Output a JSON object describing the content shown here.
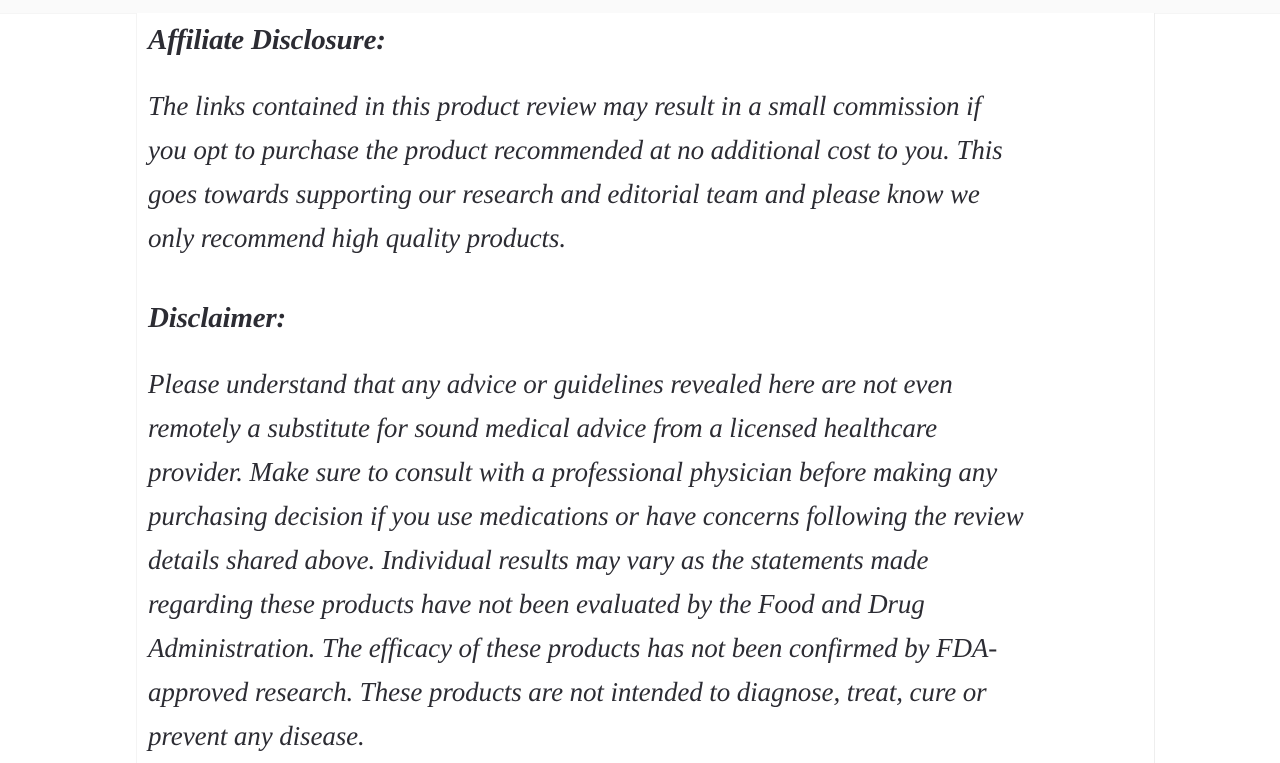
{
  "page": {
    "background_color": "#ffffff",
    "text_color": "#2c2c33",
    "column_border_color": "#eeeeee"
  },
  "article": {
    "sections": [
      {
        "heading": "Affiliate Disclosure:",
        "lines": [
          "The links contained in this product review may result in a small commission if",
          "you opt to purchase the product recommended at no additional cost to you. This",
          "goes towards supporting our research and editorial team and please know we",
          "only recommend high quality products."
        ]
      },
      {
        "heading": "Disclaimer:",
        "lines": [
          "Please understand that any advice or guidelines revealed here are not even",
          "remotely a substitute for sound medical advice from a licensed healthcare",
          "provider. Make sure to consult with a professional physician before making any",
          "purchasing decision if you use medications or have concerns following the review",
          "details shared above. Individual results may vary as the statements made",
          "regarding these products have not been evaluated by the Food and Drug",
          "Administration. The efficacy of these products has not been confirmed by FDA-",
          "approved research. These products are not intended to diagnose, treat, cure or",
          "prevent any disease."
        ]
      }
    ]
  }
}
